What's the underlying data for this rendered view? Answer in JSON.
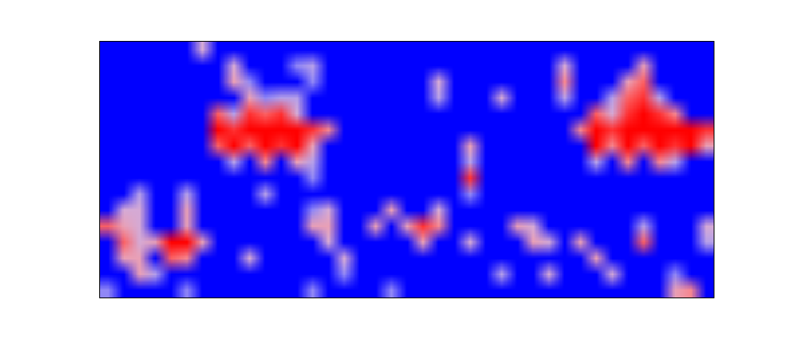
{
  "chart_data": {
    "type": "heatmap",
    "tick_labels": false,
    "color_range": [
      0,
      1
    ],
    "cells": [
      [
        0,
        0,
        0,
        0,
        0,
        0,
        0.5,
        0,
        0,
        0,
        0,
        0,
        0,
        0,
        0,
        0,
        0,
        0,
        0,
        0,
        0,
        0,
        0,
        0,
        0,
        0,
        0,
        0,
        0,
        0,
        0,
        0,
        0,
        0,
        0,
        0,
        0,
        0,
        0
      ],
      [
        0,
        0,
        0,
        0,
        0,
        0,
        0,
        0,
        0.5,
        0,
        0,
        0,
        0.3,
        0.4,
        0,
        0,
        0,
        0,
        0,
        0,
        0,
        0,
        0,
        0,
        0,
        0,
        0,
        0,
        0,
        0.5,
        0,
        0,
        0,
        0,
        0.6,
        0,
        0,
        0,
        0
      ],
      [
        0,
        0,
        0,
        0,
        0,
        0,
        0,
        0,
        0.6,
        0.3,
        0,
        0,
        0,
        0.3,
        0,
        0,
        0,
        0,
        0,
        0,
        0,
        0.5,
        0,
        0,
        0,
        0,
        0,
        0,
        0,
        0.7,
        0,
        0,
        0,
        0.6,
        0.8,
        0,
        0,
        0,
        0
      ],
      [
        0,
        0,
        0,
        0,
        0,
        0,
        0,
        0,
        0,
        0.6,
        0.3,
        0.4,
        0.4,
        0,
        0,
        0,
        0,
        0,
        0,
        0,
        0,
        0.4,
        0,
        0,
        0,
        0.5,
        0,
        0,
        0,
        0.4,
        0,
        0,
        0.4,
        0.8,
        0.9,
        0.4,
        0,
        0,
        0
      ],
      [
        0,
        0,
        0,
        0,
        0,
        0,
        0,
        0.8,
        0.4,
        0.9,
        0.8,
        0.9,
        0.5,
        0,
        0,
        0,
        0,
        0,
        0,
        0,
        0,
        0,
        0,
        0,
        0,
        0,
        0,
        0,
        0,
        0,
        0,
        0.8,
        0.5,
        0.9,
        1,
        0.9,
        0.7,
        0,
        0
      ],
      [
        0,
        0,
        0,
        0,
        0,
        0,
        0,
        1,
        0.9,
        1,
        1,
        1,
        1,
        0.9,
        0.7,
        0,
        0,
        0,
        0,
        0,
        0,
        0,
        0,
        0,
        0,
        0,
        0,
        0,
        0,
        0,
        0.7,
        1,
        0.9,
        1,
        1,
        1,
        1,
        1,
        0.9
      ],
      [
        0,
        0,
        0,
        0,
        0,
        0,
        0,
        0.8,
        1,
        0.8,
        1,
        0.9,
        1,
        0.6,
        0,
        0,
        0,
        0,
        0,
        0,
        0,
        0,
        0,
        0.6,
        0,
        0,
        0,
        0,
        0,
        0,
        0,
        1,
        0.7,
        1,
        0.8,
        1,
        0.9,
        1,
        0.6
      ],
      [
        0,
        0,
        0,
        0,
        0,
        0,
        0,
        0,
        0.4,
        0,
        0.7,
        0,
        0.6,
        0.4,
        0,
        0,
        0,
        0,
        0,
        0,
        0,
        0,
        0,
        0.4,
        0,
        0,
        0,
        0,
        0,
        0,
        0,
        0.4,
        0,
        0.7,
        0,
        0.7,
        0.4,
        0,
        0
      ],
      [
        0,
        0,
        0,
        0,
        0,
        0,
        0,
        0,
        0,
        0,
        0,
        0,
        0,
        0.3,
        0,
        0,
        0,
        0,
        0,
        0,
        0,
        0,
        0,
        0.9,
        0,
        0,
        0,
        0,
        0,
        0,
        0,
        0,
        0,
        0,
        0,
        0,
        0,
        0,
        0
      ],
      [
        0,
        0,
        0.4,
        0,
        0,
        0.4,
        0,
        0,
        0,
        0,
        0.4,
        0,
        0,
        0,
        0,
        0,
        0,
        0,
        0,
        0,
        0,
        0,
        0,
        0.3,
        0,
        0,
        0,
        0,
        0,
        0,
        0,
        0,
        0,
        0,
        0,
        0,
        0,
        0,
        0
      ],
      [
        0,
        0.5,
        0.5,
        0,
        0,
        0.6,
        0,
        0,
        0,
        0,
        0,
        0,
        0,
        0.3,
        0.5,
        0,
        0,
        0,
        0.6,
        0,
        0,
        0.5,
        0,
        0,
        0,
        0,
        0,
        0,
        0,
        0,
        0,
        0,
        0,
        0,
        0,
        0,
        0,
        0,
        0
      ],
      [
        0.8,
        0.6,
        0.5,
        0,
        0,
        0.6,
        0,
        0,
        0,
        0,
        0,
        0,
        0,
        0.6,
        0.6,
        0,
        0,
        0.6,
        0,
        0.6,
        0.9,
        0.7,
        0,
        0,
        0,
        0,
        0.6,
        0.5,
        0,
        0,
        0,
        0,
        0,
        0,
        0.4,
        0,
        0,
        0,
        0.5
      ],
      [
        0,
        0.8,
        0.5,
        0.6,
        1,
        1,
        0.6,
        0,
        0,
        0,
        0,
        0,
        0,
        0,
        0.5,
        0,
        0,
        0,
        0,
        0,
        0.6,
        0,
        0,
        0.5,
        0,
        0,
        0,
        0.6,
        0.5,
        0,
        0.6,
        0,
        0,
        0,
        0.8,
        0,
        0,
        0,
        0.4
      ],
      [
        0,
        0.6,
        0.6,
        0,
        0.8,
        0.7,
        0,
        0,
        0,
        0.5,
        0,
        0,
        0,
        0,
        0,
        0.5,
        0,
        0,
        0,
        0,
        0,
        0,
        0,
        0,
        0,
        0,
        0,
        0,
        0,
        0,
        0,
        0.6,
        0,
        0,
        0,
        0,
        0,
        0,
        0
      ],
      [
        0,
        0,
        0.6,
        0.4,
        0,
        0,
        0,
        0,
        0,
        0,
        0,
        0,
        0,
        0,
        0,
        0.3,
        0,
        0,
        0,
        0,
        0,
        0,
        0,
        0,
        0,
        0.4,
        0,
        0,
        0.5,
        0,
        0,
        0,
        0.5,
        0,
        0,
        0,
        0.3,
        0,
        0
      ],
      [
        0.3,
        0,
        0,
        0,
        0,
        0.3,
        0,
        0,
        0,
        0,
        0,
        0,
        0,
        0.3,
        0,
        0,
        0,
        0,
        0.3,
        0,
        0,
        0,
        0,
        0,
        0,
        0,
        0,
        0,
        0,
        0,
        0,
        0,
        0,
        0,
        0,
        0,
        0.6,
        0.7,
        0
      ]
    ]
  }
}
